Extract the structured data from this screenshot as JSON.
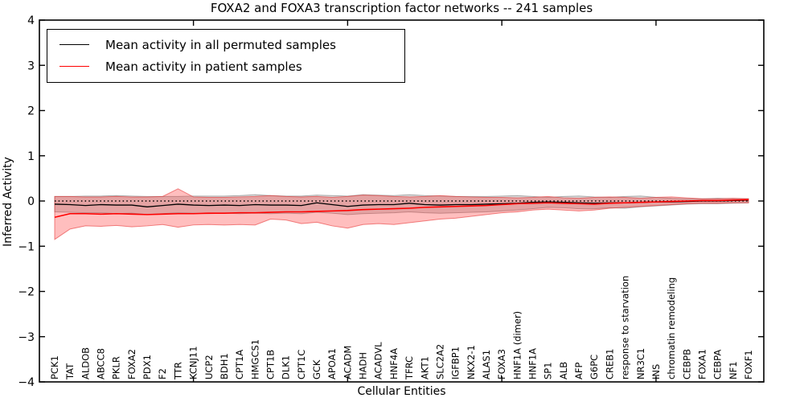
{
  "figure": {
    "title": "FOXA2 and FOXA3 transcription factor networks -- 241 samples",
    "xlabel": "Cellular Entities",
    "ylabel": "Inferred Activity"
  },
  "legend": {
    "items": [
      {
        "label": "Mean activity in all permuted samples",
        "color": "#000000"
      },
      {
        "label": "Mean activity in patient samples",
        "color": "#ff0000"
      }
    ]
  },
  "chart_data": {
    "type": "line",
    "title": "FOXA2 and FOXA3 transcription factor networks -- 241 samples",
    "xlabel": "Cellular Entities",
    "ylabel": "Inferred Activity",
    "ylim": [
      -4,
      4
    ],
    "yticks": [
      -4,
      -3,
      -2,
      -1,
      0,
      1,
      2,
      3,
      4
    ],
    "xtick_positions": [
      10,
      20,
      30,
      40
    ],
    "grid": false,
    "legend_position": "upper left",
    "zero_line": {
      "y": 0,
      "style": "dotted",
      "color": "#000000"
    },
    "categories": [
      "PCK1",
      "TAT",
      "ALDOB",
      "ABCC8",
      "PKLR",
      "FOXA2",
      "PDX1",
      "F2",
      "TTR",
      "KCNJ11",
      "UCP2",
      "BDH1",
      "CPT1A",
      "HMGCS1",
      "CPT1B",
      "DLK1",
      "CPT1C",
      "GCK",
      "APOA1",
      "ACADM",
      "HADH",
      "ACADVL",
      "HNF4A",
      "TFRC",
      "AKT1",
      "SLC2A2",
      "IGFBP1",
      "NKX2-1",
      "ALAS1",
      "FOXA3",
      "HNF1A (dimer)",
      "HNF1A",
      "SP1",
      "ALB",
      "AFP",
      "G6PC",
      "CREB1",
      "response to starvation",
      "NR3C1",
      "INS",
      "chromatin remodeling",
      "CEBPB",
      "FOXA1",
      "CEBPA",
      "NF1",
      "FOXF1"
    ],
    "series": [
      {
        "name": "Mean activity in all permuted samples",
        "color": "#000000",
        "values": [
          -0.07,
          -0.08,
          -0.1,
          -0.08,
          -0.09,
          -0.09,
          -0.13,
          -0.1,
          -0.07,
          -0.09,
          -0.1,
          -0.09,
          -0.1,
          -0.08,
          -0.09,
          -0.09,
          -0.1,
          -0.04,
          -0.08,
          -0.12,
          -0.09,
          -0.08,
          -0.08,
          -0.05,
          -0.08,
          -0.09,
          -0.08,
          -0.08,
          -0.07,
          -0.06,
          -0.05,
          -0.03,
          -0.02,
          -0.03,
          -0.04,
          -0.05,
          -0.04,
          -0.04,
          -0.03,
          -0.02,
          -0.02,
          -0.01,
          0.0,
          0.0,
          0.01,
          0.02
        ]
      },
      {
        "name": "Mean activity in patient samples",
        "color": "#ff0000",
        "values": [
          -0.36,
          -0.28,
          -0.28,
          -0.29,
          -0.28,
          -0.29,
          -0.3,
          -0.29,
          -0.28,
          -0.28,
          -0.27,
          -0.27,
          -0.26,
          -0.26,
          -0.25,
          -0.24,
          -0.24,
          -0.23,
          -0.22,
          -0.21,
          -0.19,
          -0.18,
          -0.17,
          -0.16,
          -0.14,
          -0.13,
          -0.12,
          -0.11,
          -0.1,
          -0.08,
          -0.06,
          -0.05,
          -0.04,
          -0.05,
          -0.06,
          -0.07,
          -0.05,
          -0.04,
          -0.03,
          -0.02,
          -0.01,
          0.0,
          0.01,
          0.01,
          0.02,
          0.03
        ]
      }
    ],
    "bands": [
      {
        "name": "permuted-samples-range",
        "fill": "rgba(120,120,120,0.28)",
        "edge": "rgba(90,90,90,0.45)",
        "upper": [
          0.1,
          0.1,
          0.11,
          0.11,
          0.12,
          0.11,
          0.1,
          0.1,
          0.1,
          0.11,
          0.11,
          0.11,
          0.12,
          0.14,
          0.12,
          0.11,
          0.11,
          0.13,
          0.12,
          0.11,
          0.14,
          0.13,
          0.12,
          0.14,
          0.12,
          0.11,
          0.1,
          0.1,
          0.1,
          0.11,
          0.12,
          0.1,
          0.08,
          0.1,
          0.11,
          0.09,
          0.08,
          0.1,
          0.11,
          0.08,
          0.06,
          0.05,
          0.05,
          0.06,
          0.05,
          0.05
        ],
        "lower": [
          -0.24,
          -0.25,
          -0.26,
          -0.26,
          -0.28,
          -0.27,
          -0.3,
          -0.28,
          -0.26,
          -0.27,
          -0.28,
          -0.27,
          -0.28,
          -0.27,
          -0.28,
          -0.27,
          -0.28,
          -0.25,
          -0.27,
          -0.3,
          -0.28,
          -0.27,
          -0.26,
          -0.24,
          -0.26,
          -0.27,
          -0.26,
          -0.25,
          -0.24,
          -0.22,
          -0.2,
          -0.17,
          -0.14,
          -0.15,
          -0.17,
          -0.17,
          -0.15,
          -0.16,
          -0.13,
          -0.11,
          -0.09,
          -0.07,
          -0.06,
          -0.06,
          -0.05,
          -0.04
        ]
      },
      {
        "name": "patient-samples-range",
        "fill": "rgba(255,40,40,0.30)",
        "edge": "rgba(230,40,40,0.55)",
        "upper": [
          0.1,
          0.1,
          0.09,
          0.09,
          0.1,
          0.09,
          0.09,
          0.1,
          0.27,
          0.09,
          0.08,
          0.08,
          0.09,
          0.1,
          0.12,
          0.1,
          0.09,
          0.1,
          0.08,
          0.1,
          0.13,
          0.12,
          0.1,
          0.09,
          0.1,
          0.12,
          0.1,
          0.09,
          0.08,
          0.08,
          0.07,
          0.08,
          0.1,
          0.07,
          0.06,
          0.08,
          0.09,
          0.08,
          0.06,
          0.08,
          0.09,
          0.07,
          0.05,
          0.05,
          0.06,
          0.05
        ],
        "lower": [
          -0.85,
          -0.62,
          -0.55,
          -0.56,
          -0.54,
          -0.57,
          -0.55,
          -0.52,
          -0.58,
          -0.53,
          -0.52,
          -0.53,
          -0.52,
          -0.53,
          -0.4,
          -0.42,
          -0.5,
          -0.47,
          -0.55,
          -0.6,
          -0.52,
          -0.5,
          -0.52,
          -0.48,
          -0.44,
          -0.4,
          -0.38,
          -0.34,
          -0.3,
          -0.26,
          -0.24,
          -0.2,
          -0.18,
          -0.2,
          -0.22,
          -0.2,
          -0.16,
          -0.14,
          -0.12,
          -0.1,
          -0.08,
          -0.06,
          -0.05,
          -0.05,
          -0.04,
          -0.04
        ]
      }
    ]
  }
}
